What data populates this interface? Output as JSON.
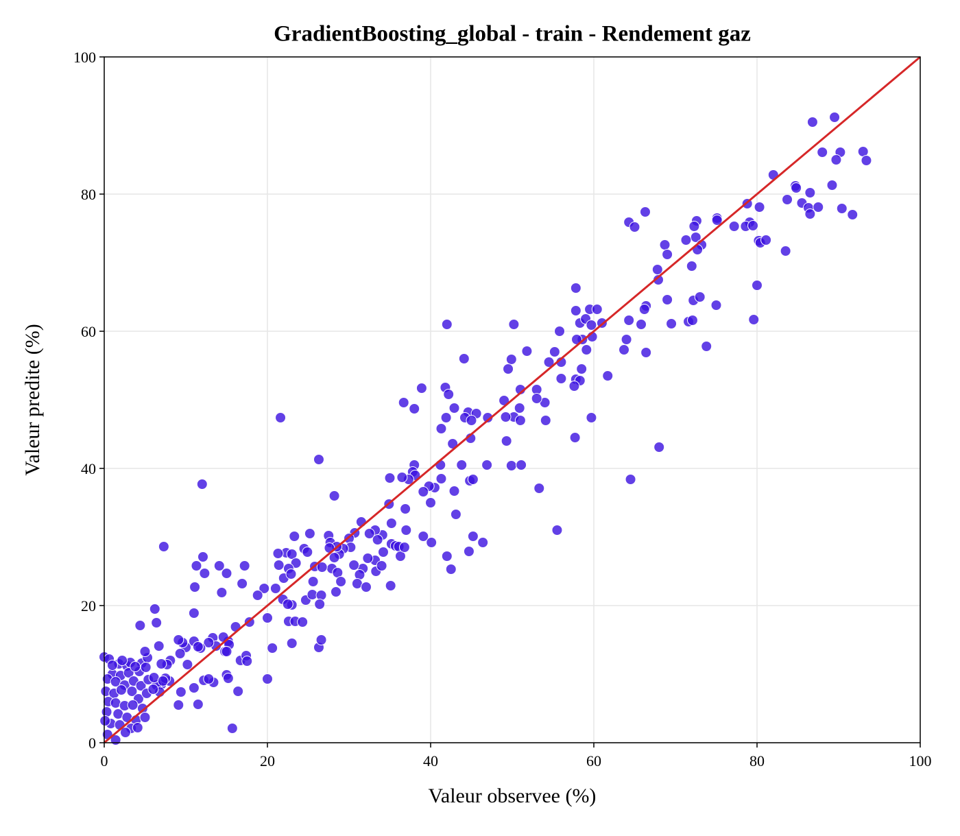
{
  "chart_data": {
    "type": "scatter",
    "title": "GradientBoosting_global - train - Rendement gaz",
    "x_label": "Valeur observee (%)",
    "y_label": "Valeur predite (%)",
    "color": "#3b10e0",
    "line_color": "#d62728",
    "grid": true,
    "xlim": [
      0,
      100
    ],
    "ylim": [
      0,
      100
    ],
    "xticks": [
      0,
      20,
      40,
      60,
      80,
      100
    ],
    "yticks": [
      0,
      20,
      40,
      60,
      80,
      100
    ],
    "x": [
      86.8,
      89.5,
      88,
      90.2,
      93,
      93.4,
      89.7,
      82,
      84.7,
      84.8,
      86.5,
      85.5,
      86.3,
      87.5,
      86.5,
      89.2,
      90.4,
      91.7,
      83.7,
      80.3,
      78.8,
      79.1,
      78.6,
      77.2,
      79.5,
      80.2,
      80.4,
      81.1,
      83.5,
      80,
      79.6,
      75.1,
      75.1,
      72.6,
      72.3,
      72.5,
      71.3,
      73.2,
      72.7,
      68.7,
      69,
      72,
      67.8,
      67.9,
      72.2,
      73,
      69,
      75,
      66.4,
      66.2,
      65.8,
      69.5,
      71.6,
      72.1,
      64.3,
      73.8,
      66.4,
      64,
      63.7,
      64.3,
      65,
      66.3,
      68,
      64.5,
      57.8,
      57.8,
      58.3,
      59,
      59.5,
      60.4,
      59.7,
      61,
      59.8,
      58.6,
      57.9,
      59.1,
      57.8,
      58.3,
      57.6,
      58.5,
      56,
      54.5,
      55.2,
      55.8,
      56,
      61.7,
      59.7,
      57.7,
      55.5,
      54,
      54.1,
      53,
      53,
      51.8,
      50.2,
      49.9,
      49.5,
      51,
      50.2,
      50.9,
      51,
      49.9,
      51.1,
      53.3,
      49.2,
      49,
      49.3,
      42,
      44.1,
      38.9,
      41.8,
      42.2,
      36.7,
      38,
      42.9,
      44.6,
      45.6,
      44.2,
      47,
      45,
      41.9,
      41.3,
      42.7,
      43.8,
      44.9,
      44.8,
      45.2,
      46.9,
      41.2,
      41.3,
      40.5,
      39.8,
      39.1,
      40,
      42.9,
      43.1,
      38,
      37.8,
      38.1,
      37.3,
      36.5,
      35,
      34.9,
      36.9,
      39.1,
      40.1,
      42,
      42.5,
      44.7,
      45.2,
      46.4,
      37,
      35.2,
      34.1,
      33.2,
      32.5,
      31.5,
      30.7,
      30,
      28.2,
      26.3,
      21.6,
      12,
      33.5,
      34.2,
      35.2,
      35.7,
      36.1,
      36.3,
      36.8,
      35.1,
      33.2,
      32.3,
      31.7,
      33.3,
      34,
      30.6,
      31.3,
      31,
      32.1,
      30.2,
      29.3,
      28.8,
      28.2,
      27.5,
      27.7,
      28.5,
      27.6,
      27.9,
      28.6,
      29,
      28.4,
      25.2,
      24.5,
      23.3,
      22.3,
      21.3,
      23,
      23.5,
      22.6,
      24.9,
      21.4,
      22,
      22.9,
      21,
      21.9,
      23,
      22.5,
      24.7,
      25.5,
      26.6,
      26.4,
      25.8,
      26.7,
      25.6,
      22.6,
      23.4,
      24.3,
      26.3,
      26.6,
      23,
      20.6,
      20,
      20,
      19.6,
      18.8,
      16.9,
      17.2,
      15,
      14.1,
      12.1,
      11.3,
      12.3,
      14.4,
      11.1,
      7.3,
      6.2,
      6.4,
      4.4,
      11,
      17.8,
      16.1,
      15.2,
      14.6,
      15.3,
      13.3,
      13.7,
      12.8,
      11.8,
      11,
      10,
      9.6,
      9.3,
      9.1,
      8.1,
      7.7,
      7,
      10.2,
      11.5,
      14.8,
      15,
      16.7,
      17.4,
      17.5,
      15,
      15.2,
      13.4,
      16.4,
      15.7,
      11.5,
      9.1,
      9.4,
      11,
      12.2,
      12.8,
      8,
      7,
      6.4,
      6.8,
      7.5,
      0,
      0.6,
      1.8,
      2.8,
      3.2,
      4.6,
      5.3,
      5,
      6.7,
      1,
      2,
      3,
      4.3,
      5.1,
      0.4,
      1.4,
      2.5,
      3.6,
      4.5,
      5.4,
      0.2,
      1.2,
      2.1,
      3.4,
      4.2,
      5.2,
      6,
      0.5,
      1.4,
      2.5,
      3.5,
      4.7,
      0.3,
      1.7,
      2.8,
      3.9,
      5,
      0.8,
      1.9,
      3.3,
      0.4,
      1.4,
      2.6,
      0.1,
      4.1,
      6.1,
      7.2,
      1,
      2.2,
      3.8
    ],
    "values": [
      90.5,
      91.2,
      86.1,
      86.1,
      86.2,
      84.9,
      85,
      82.8,
      81.2,
      80.9,
      80.2,
      78.7,
      78,
      78.1,
      77.1,
      81.3,
      77.9,
      77,
      79.2,
      78.1,
      78.6,
      75.9,
      75.3,
      75.3,
      75.4,
      73.2,
      72.9,
      73.3,
      71.7,
      66.7,
      61.7,
      76.5,
      76.2,
      76.1,
      75.3,
      73.7,
      73.3,
      72.6,
      71.9,
      72.6,
      71.2,
      69.5,
      69,
      67.5,
      64.5,
      65,
      64.6,
      63.8,
      63.7,
      63.2,
      61,
      61.1,
      61.4,
      61.6,
      61.6,
      57.8,
      56.9,
      58.8,
      57.3,
      75.9,
      75.2,
      77.4,
      43.1,
      38.4,
      66.3,
      63,
      61.2,
      61.8,
      63.2,
      63.2,
      60.9,
      61.2,
      59.2,
      58.8,
      58.8,
      57.3,
      53,
      52.8,
      52,
      54.5,
      55.5,
      55.5,
      57,
      60,
      53.1,
      53.5,
      47.4,
      44.5,
      31,
      49.6,
      47,
      51.5,
      50.2,
      57.1,
      61,
      55.9,
      54.5,
      51.5,
      47.5,
      48.8,
      47,
      40.4,
      40.5,
      37.1,
      47.5,
      49.9,
      44,
      61,
      56,
      51.7,
      51.8,
      50.8,
      49.6,
      48.7,
      48.8,
      48.2,
      48,
      47.4,
      47.4,
      47,
      47.4,
      45.8,
      43.6,
      40.5,
      44.4,
      38.2,
      38.4,
      40.5,
      40.5,
      38.5,
      37.2,
      37.4,
      36.6,
      35,
      36.7,
      33.3,
      40.5,
      39.5,
      39,
      38.4,
      38.7,
      38.6,
      34.8,
      34.1,
      30.1,
      29.2,
      27.2,
      25.3,
      27.9,
      30.1,
      29.2,
      31,
      32,
      30.3,
      31,
      30.5,
      32.2,
      30.6,
      29.8,
      36,
      41.3,
      47.4,
      37.7,
      29.6,
      27.8,
      29,
      28.7,
      28.6,
      27.2,
      28.5,
      22.9,
      26.6,
      26.9,
      25.4,
      25,
      25.8,
      25.9,
      24.5,
      23.2,
      22.7,
      28.5,
      28.3,
      27.5,
      27,
      30.2,
      29.2,
      28.6,
      28.4,
      25.4,
      24.8,
      23.5,
      22,
      30.5,
      28.3,
      30.1,
      27.7,
      27.6,
      27.5,
      26.2,
      25.4,
      27.8,
      25.9,
      24,
      24.6,
      22.5,
      20.9,
      20.1,
      20.2,
      20.8,
      21.6,
      21.5,
      20.2,
      25.7,
      25.6,
      23.5,
      17.7,
      17.7,
      17.6,
      13.9,
      15,
      14.5,
      13.8,
      9.3,
      18.2,
      22.5,
      21.5,
      23.2,
      25.8,
      24.7,
      25.8,
      27.1,
      25.8,
      24.7,
      21.9,
      22.7,
      28.6,
      19.5,
      17.5,
      17.1,
      18.9,
      17.6,
      16.9,
      14.8,
      15.4,
      14.3,
      15.3,
      14.1,
      14.6,
      13.8,
      14.8,
      13.9,
      14.6,
      13,
      15,
      12,
      11.4,
      11.5,
      11.4,
      14,
      13.3,
      13.3,
      12,
      12.7,
      11.9,
      9.9,
      9.4,
      8.8,
      7.5,
      2.1,
      5.6,
      5.5,
      7.4,
      8,
      9.1,
      9.3,
      9,
      8.5,
      8.4,
      7.4,
      9.4,
      12.5,
      12.2,
      11.5,
      11.2,
      11.7,
      11.6,
      12.4,
      13.3,
      14.1,
      10,
      9.8,
      10.2,
      10.4,
      11,
      9.3,
      8.9,
      8.4,
      9,
      8.3,
      9.2,
      7.5,
      7.2,
      7.7,
      7.5,
      6.4,
      7.2,
      7.8,
      6,
      5.8,
      5.4,
      5.5,
      5,
      4.5,
      4.2,
      3.7,
      3.3,
      3.7,
      2.8,
      2.6,
      2.1,
      1.2,
      0.4,
      1.5,
      3.2,
      2.2,
      9.5,
      9,
      11.3,
      12,
      11.1
    ],
    "identity_line": {
      "x": [
        0,
        100
      ],
      "y": [
        0,
        100
      ]
    }
  }
}
